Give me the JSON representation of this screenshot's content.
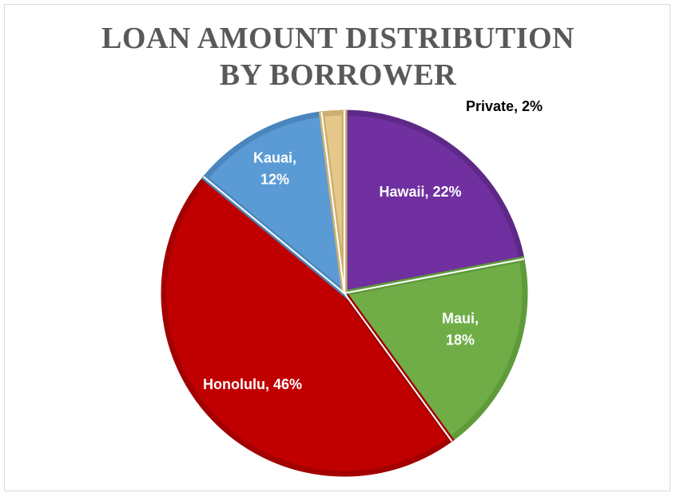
{
  "chart_data": {
    "type": "pie",
    "title_lines": [
      "LOAN AMOUNT DISTRIBUTION",
      "BY BORROWER"
    ],
    "slices": [
      {
        "name": "Hawaii",
        "value": 22,
        "label_lines": [
          "Hawaii, 22%"
        ],
        "color": "#7030a0",
        "border": "#5e2887",
        "label_color": "#ffffff"
      },
      {
        "name": "Maui",
        "value": 18,
        "label_lines": [
          "Maui,",
          "18%"
        ],
        "color": "#70ad47",
        "border": "#5f9a3b",
        "label_color": "#ffffff"
      },
      {
        "name": "Honolulu",
        "value": 46,
        "label_lines": [
          "Honolulu, 46%"
        ],
        "color": "#c00000",
        "border": "#a30000",
        "label_color": "#ffffff"
      },
      {
        "name": "Kauai",
        "value": 12,
        "label_lines": [
          "Kauai,",
          "12%"
        ],
        "color": "#5b9bd5",
        "border": "#4a86bd",
        "label_color": "#ffffff"
      },
      {
        "name": "Private",
        "value": 2,
        "label_lines": [
          "Private, 2%"
        ],
        "color": "#e6c98a",
        "border": "#cdb071",
        "label_color": "#000000"
      }
    ],
    "legend": "none"
  }
}
